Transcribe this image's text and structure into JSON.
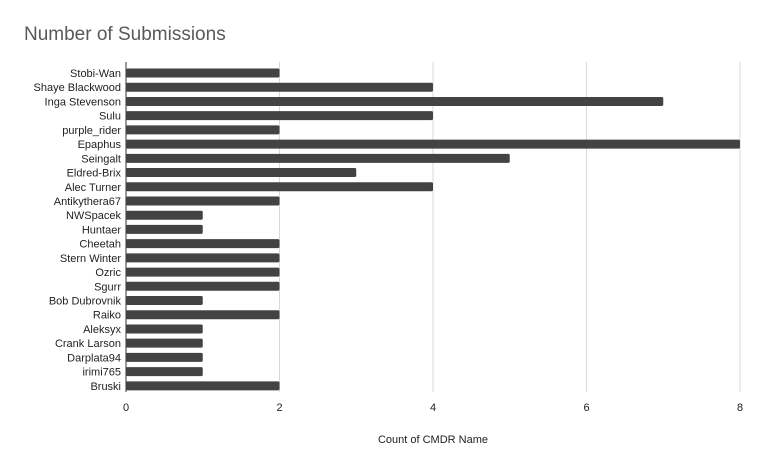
{
  "chart_data": {
    "type": "bar",
    "orientation": "horizontal",
    "title": "Number of Submissions",
    "xlabel": "Count of CMDR Name",
    "ylabel": "",
    "xlim": [
      0,
      8
    ],
    "x_ticks": [
      0,
      2,
      4,
      6,
      8
    ],
    "grid": true,
    "bar_color": "#434343",
    "categories": [
      "Stobi-Wan",
      "Shaye Blackwood",
      "Inga Stevenson",
      "Sulu",
      "purple_rider",
      "Epaphus",
      "Seingalt",
      "Eldred-Brix",
      "Alec Turner",
      "Antikythera67",
      "NWSpacek",
      "Huntaer",
      "Cheetah",
      "Stern Winter",
      "Ozric",
      "Sgurr",
      "Bob Dubrovnik",
      "Raiko",
      "Aleksyx",
      "Crank Larson",
      "Darplata94",
      "irimi765",
      "Bruski"
    ],
    "values": [
      2,
      4,
      7,
      4,
      2,
      8,
      5,
      3,
      4,
      2,
      1,
      1,
      2,
      2,
      2,
      2,
      1,
      2,
      1,
      1,
      1,
      1,
      2
    ]
  }
}
